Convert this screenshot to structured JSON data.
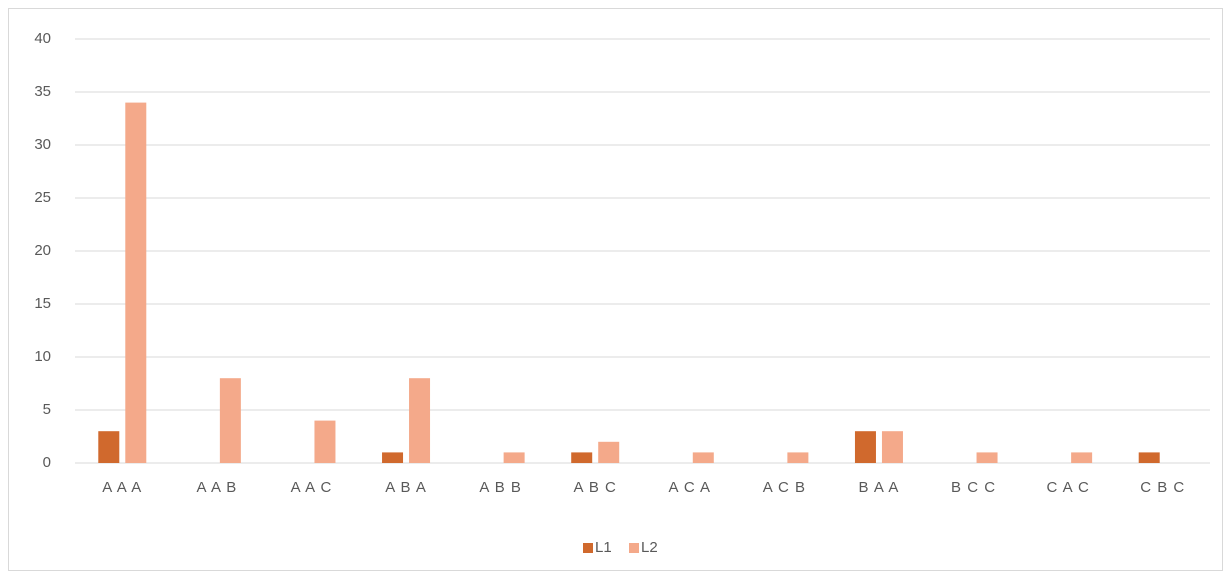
{
  "chart_data": {
    "type": "bar",
    "categories": [
      "A A A",
      "A A B",
      "A A C",
      "A B A",
      "A B B",
      "A B C",
      "A C A",
      "A C B",
      "B A A",
      "B C C",
      "C A C",
      "C B C"
    ],
    "series": [
      {
        "name": "L1",
        "color": "#d0692d",
        "values": [
          3,
          0,
          0,
          1,
          0,
          1,
          0,
          0,
          3,
          0,
          0,
          1
        ]
      },
      {
        "name": "L2",
        "color": "#f4a98a",
        "values": [
          34,
          8,
          4,
          8,
          1,
          2,
          1,
          1,
          3,
          1,
          1,
          0
        ]
      }
    ],
    "ylim": [
      0,
      40
    ],
    "yticks": [
      0,
      5,
      10,
      15,
      20,
      25,
      30,
      35,
      40
    ],
    "grid": true,
    "legend": "bottom"
  }
}
